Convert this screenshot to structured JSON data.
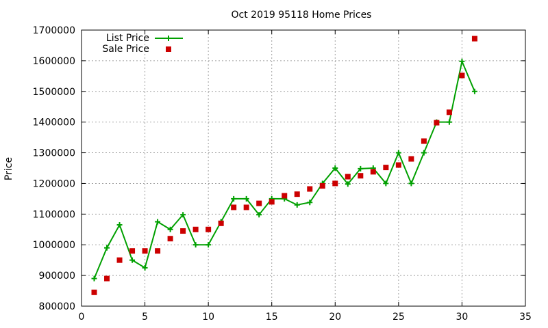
{
  "chart_data": {
    "type": "line",
    "title": "Oct 2019 95118 Home Prices",
    "xlabel": "",
    "ylabel": "Price",
    "xlim": [
      0,
      35
    ],
    "ylim": [
      800000,
      1700000
    ],
    "xticks": [
      0,
      5,
      10,
      15,
      20,
      25,
      30,
      35
    ],
    "yticks": [
      800000,
      900000,
      1000000,
      1100000,
      1200000,
      1300000,
      1400000,
      1500000,
      1600000,
      1700000
    ],
    "grid": true,
    "legend_position": "top-left",
    "series": [
      {
        "name": "List Price",
        "type": "line",
        "color": "#00a000",
        "x": [
          1,
          2,
          3,
          4,
          5,
          6,
          7,
          8,
          9,
          10,
          11,
          12,
          13,
          14,
          15,
          16,
          17,
          18,
          19,
          20,
          21,
          22,
          23,
          24,
          25,
          26,
          27,
          28,
          29,
          30,
          31
        ],
        "values": [
          890000,
          990000,
          1065000,
          950000,
          925000,
          1075000,
          1050000,
          1098000,
          1000000,
          1000000,
          1075000,
          1150000,
          1150000,
          1098000,
          1150000,
          1150000,
          1130000,
          1138000,
          1200000,
          1250000,
          1198000,
          1248000,
          1250000,
          1200000,
          1300000,
          1200000,
          1300000,
          1400000,
          1400000,
          1598000,
          1500000
        ]
      },
      {
        "name": "Sale Price",
        "type": "scatter",
        "color": "#cc0000",
        "x": [
          1,
          2,
          3,
          4,
          5,
          6,
          7,
          8,
          9,
          10,
          11,
          12,
          13,
          14,
          15,
          16,
          17,
          18,
          19,
          20,
          21,
          22,
          23,
          24,
          25,
          26,
          27,
          28,
          29,
          30,
          31
        ],
        "values": [
          845000,
          890000,
          950000,
          980000,
          980000,
          980000,
          1020000,
          1045000,
          1050000,
          1050000,
          1070000,
          1122000,
          1122000,
          1135000,
          1140000,
          1160000,
          1165000,
          1182000,
          1192000,
          1200000,
          1222000,
          1225000,
          1238000,
          1252000,
          1260000,
          1280000,
          1338000,
          1398000,
          1432000,
          1552000,
          1672000
        ]
      }
    ]
  }
}
